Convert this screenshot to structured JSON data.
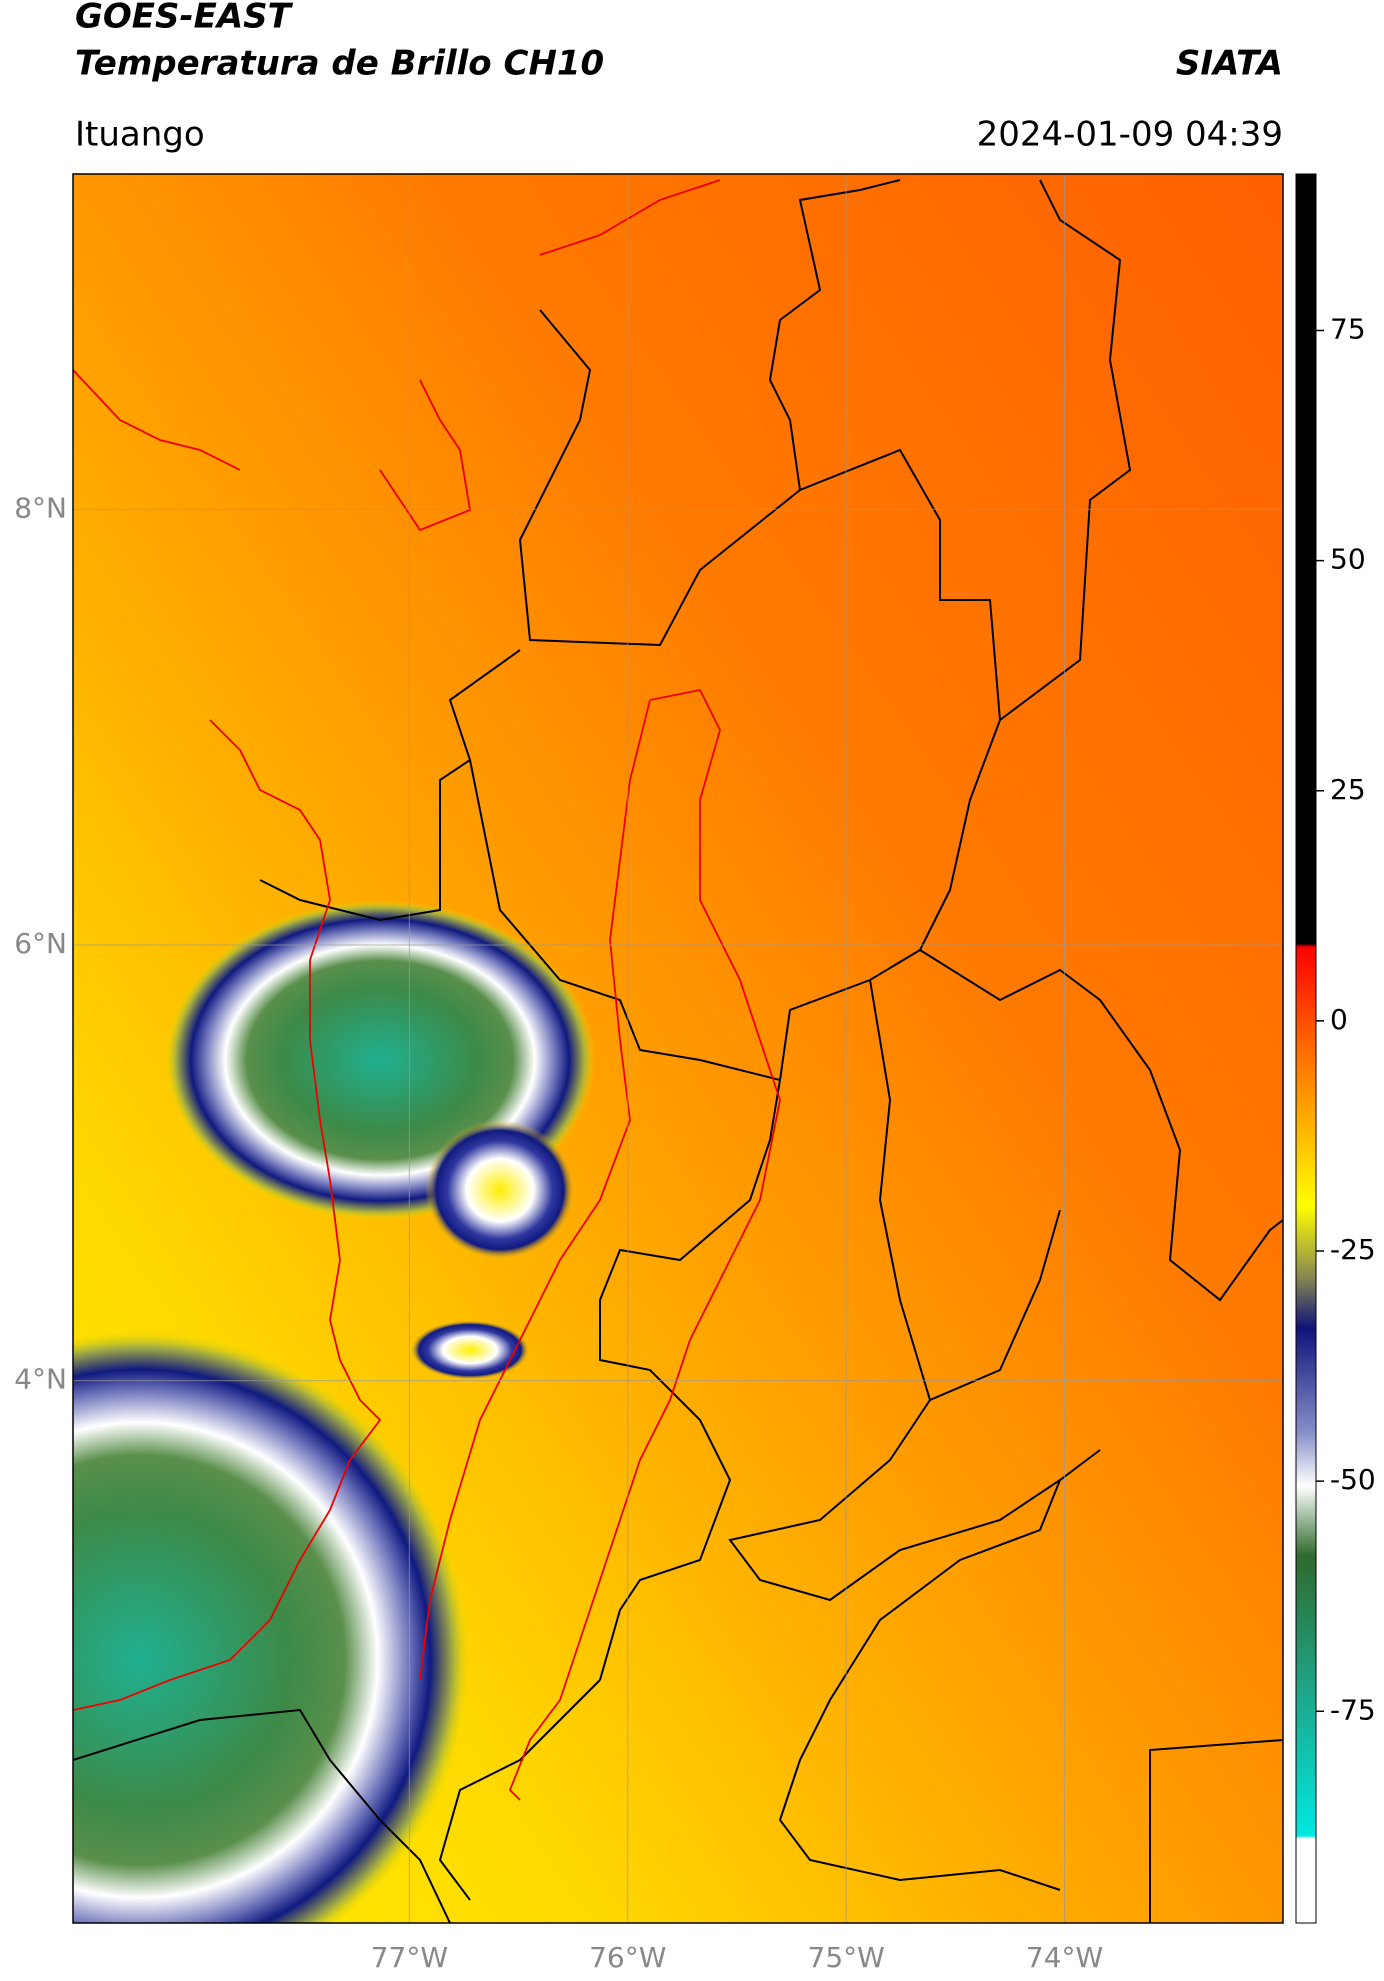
{
  "header": {
    "title": "GOES-EAST",
    "subtitle": "Temperatura de Brillo CH10",
    "source": "SIATA",
    "location": "Ituango",
    "datetime": "2024-01-09 04:39"
  },
  "map": {
    "lonlim": [
      -78.54,
      -73.0
    ],
    "latlim": [
      1.51,
      9.54
    ],
    "lonticks": [
      {
        "value": -77,
        "label": "77°W"
      },
      {
        "value": -76,
        "label": "76°W"
      },
      {
        "value": -75,
        "label": "75°W"
      },
      {
        "value": -74,
        "label": "74°W"
      }
    ],
    "latticks": [
      {
        "value": 8,
        "label": "8°N"
      },
      {
        "value": 6,
        "label": "6°N"
      },
      {
        "value": 4,
        "label": "4°N"
      }
    ],
    "grid": true
  },
  "colorbar": {
    "range": [
      -98,
      92
    ],
    "ticks": [
      75,
      50,
      25,
      0,
      -25,
      -50,
      -75
    ]
  }
}
